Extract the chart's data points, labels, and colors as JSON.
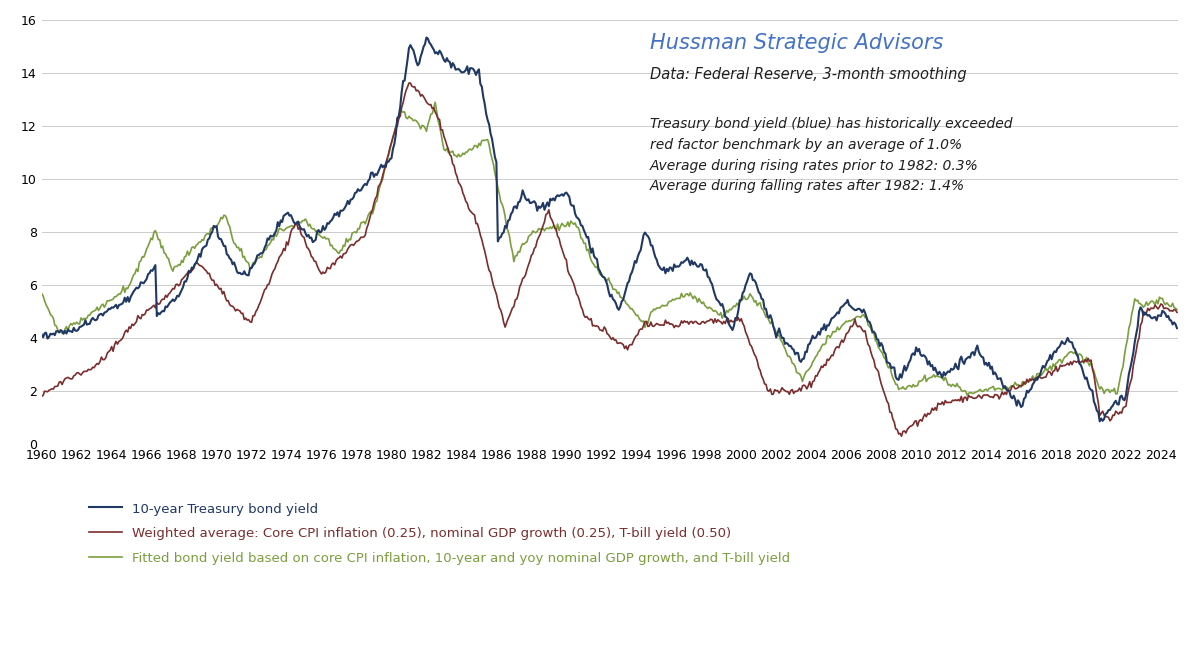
{
  "title_main": "Hussman Strategic Advisors",
  "title_sub": "Data: Federal Reserve, 3-month smoothing",
  "annotation": "Treasury bond yield (blue) has historically exceeded\nred factor benchmark by an average of 1.0%\nAverage during rising rates prior to 1982: 0.3%\nAverage during falling rates after 1982: 1.4%",
  "legend": [
    "10-year Treasury bond yield",
    "Weighted average: Core CPI inflation (0.25), nominal GDP growth (0.25), T-bill yield (0.50)",
    "Fitted bond yield based on core CPI inflation, 10-year and yoy nominal GDP growth, and T-bill yield"
  ],
  "colors": {
    "blue": "#1F3864",
    "red": "#7B2D2D",
    "green": "#7B9E3E"
  },
  "title_main_color": "#4472C4",
  "title_sub_color": "#1F1F1F",
  "annotation_color": "#1F1F1F",
  "ylim": [
    0,
    16
  ],
  "yticks": [
    0,
    2,
    4,
    6,
    8,
    10,
    12,
    14,
    16
  ],
  "xlim_start": 1960,
  "xlim_end": 2025,
  "xticks": [
    1960,
    1962,
    1964,
    1966,
    1968,
    1970,
    1972,
    1974,
    1976,
    1978,
    1980,
    1982,
    1984,
    1986,
    1988,
    1990,
    1992,
    1994,
    1996,
    1998,
    2000,
    2002,
    2004,
    2006,
    2008,
    2010,
    2012,
    2014,
    2016,
    2018,
    2020,
    2022,
    2024
  ],
  "background_color": "#FFFFFF",
  "grid_color": "#CCCCCC"
}
